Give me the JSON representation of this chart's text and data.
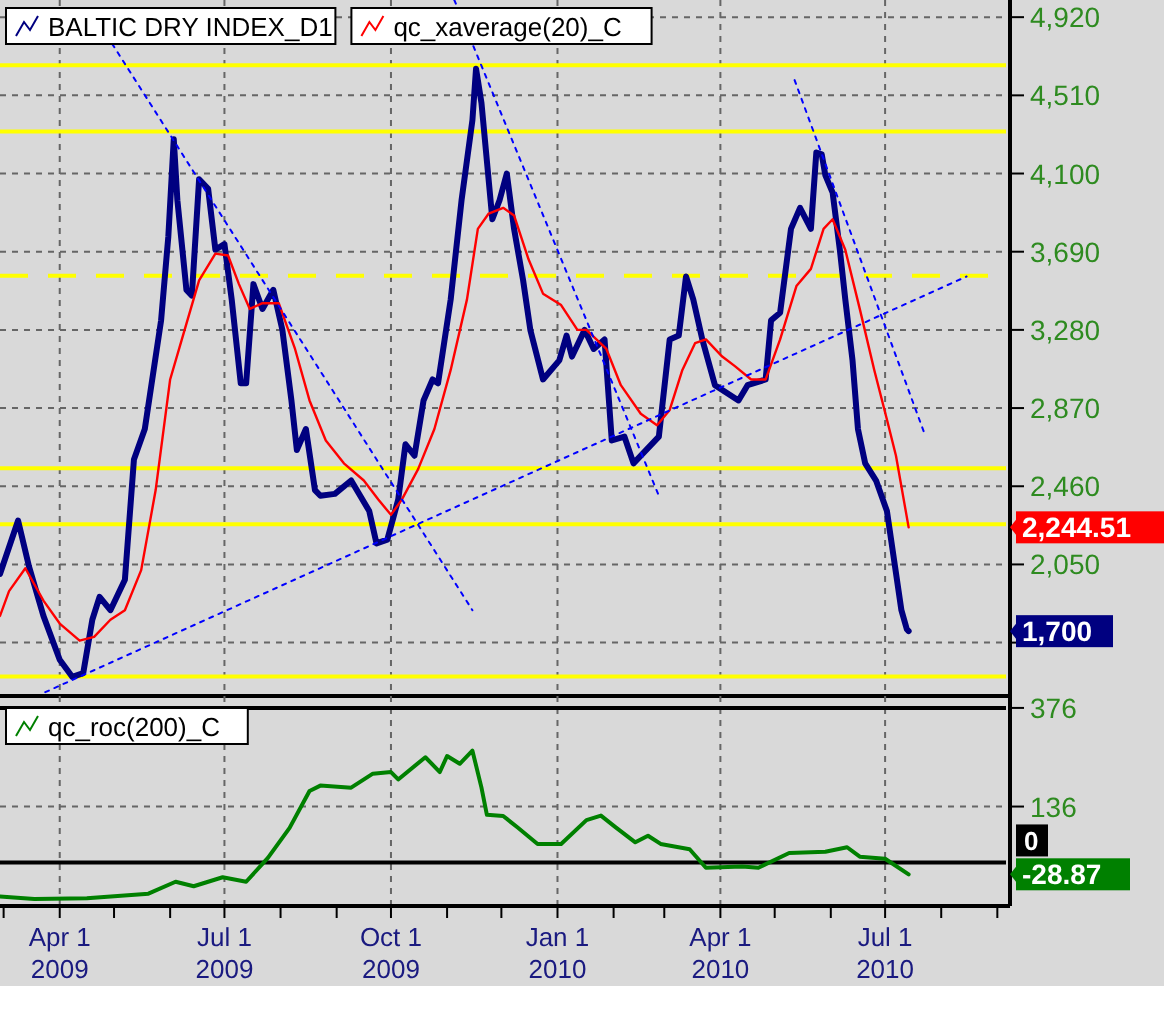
{
  "chart_data": [
    {
      "type": "line",
      "xlim": [
        "2009-02-27",
        "2010-09-08"
      ],
      "ylim": [
        1360,
        5010
      ],
      "yticks": [
        {
          "value": 4920,
          "label": "4,920"
        },
        {
          "value": 4510,
          "label": "4,510"
        },
        {
          "value": 4100,
          "label": "4,100"
        },
        {
          "value": 3690,
          "label": "3,690"
        },
        {
          "value": 3280,
          "label": "3,280"
        },
        {
          "value": 2870,
          "label": "2,870"
        },
        {
          "value": 2460,
          "label": "2,460"
        },
        {
          "value": 2050,
          "label": "2,050"
        },
        {
          "value": 1640,
          "label": null
        }
      ],
      "xticks": [
        "2009-04-01",
        "2009-07-01",
        "2009-10-01",
        "2010-01-01",
        "2010-04-01",
        "2010-07-01"
      ],
      "tick_labels": "y",
      "grid": true,
      "legend": "top left",
      "series": [
        {
          "name": "BALTIC DRY INDEX_D1",
          "color": "#000080",
          "line_style": "solid",
          "x": [
            "2009-02-27",
            "2009-03-09",
            "2009-03-15",
            "2009-03-23",
            "2009-04-01",
            "2009-04-08",
            "2009-04-14",
            "2009-04-19",
            "2009-04-23",
            "2009-04-29",
            "2009-05-07",
            "2009-05-12",
            "2009-05-18",
            "2009-05-27",
            "2009-05-31",
            "2009-06-03",
            "2009-06-05",
            "2009-06-10",
            "2009-06-13",
            "2009-06-17",
            "2009-06-22",
            "2009-06-26",
            "2009-07-01",
            "2009-07-05",
            "2009-07-10",
            "2009-07-13",
            "2009-07-17",
            "2009-07-22",
            "2009-07-28",
            "2009-08-02",
            "2009-08-07",
            "2009-08-10",
            "2009-08-15",
            "2009-08-20",
            "2009-08-23",
            "2009-08-31",
            "2009-09-09",
            "2009-09-19",
            "2009-09-23",
            "2009-09-29",
            "2009-10-05",
            "2009-10-09",
            "2009-10-14",
            "2009-10-19",
            "2009-10-24",
            "2009-10-27",
            "2009-11-03",
            "2009-11-09",
            "2009-11-15",
            "2009-11-17",
            "2009-11-20",
            "2009-11-26",
            "2009-11-30",
            "2009-12-04",
            "2009-12-08",
            "2009-12-13",
            "2009-12-17",
            "2009-12-24",
            "2010-01-02",
            "2010-01-06",
            "2010-01-09",
            "2010-01-16",
            "2010-01-21",
            "2010-01-27",
            "2010-01-31",
            "2010-02-07",
            "2010-02-12",
            "2010-02-26",
            "2010-03-04",
            "2010-03-09",
            "2010-03-13",
            "2010-03-17",
            "2010-03-22",
            "2010-03-29",
            "2010-04-11",
            "2010-04-16",
            "2010-04-26",
            "2010-04-29",
            "2010-05-04",
            "2010-05-10",
            "2010-05-15",
            "2010-05-21",
            "2010-05-24",
            "2010-05-27",
            "2010-05-29",
            "2010-06-02",
            "2010-06-06",
            "2010-06-09",
            "2010-06-13",
            "2010-06-16",
            "2010-06-20",
            "2010-06-26",
            "2010-07-02",
            "2010-07-06",
            "2010-07-10",
            "2010-07-13",
            "2010-07-14"
          ],
          "values": [
            2000,
            2280,
            2040,
            1780,
            1550,
            1460,
            1480,
            1760,
            1880,
            1810,
            1970,
            2600,
            2760,
            3330,
            3770,
            4280,
            3960,
            3490,
            3460,
            4070,
            4020,
            3700,
            3730,
            3440,
            3000,
            3000,
            3520,
            3390,
            3490,
            3280,
            2910,
            2650,
            2760,
            2440,
            2410,
            2420,
            2490,
            2330,
            2160,
            2180,
            2390,
            2680,
            2620,
            2910,
            3020,
            3000,
            3440,
            3960,
            4380,
            4650,
            4470,
            3860,
            3960,
            4100,
            3810,
            3540,
            3280,
            3020,
            3120,
            3250,
            3140,
            3280,
            3180,
            3230,
            2700,
            2720,
            2580,
            2720,
            3230,
            3250,
            3560,
            3440,
            3230,
            2990,
            2910,
            2990,
            3020,
            3330,
            3370,
            3810,
            3920,
            3810,
            4210,
            4200,
            4090,
            4000,
            3700,
            3440,
            3120,
            2760,
            2580,
            2490,
            2330,
            2070,
            1810,
            1710,
            1700
          ]
        },
        {
          "name": "qc_xaverage(20)_C",
          "color": "#ff0000",
          "line_style": "solid",
          "x": [
            "2009-02-27",
            "2009-03-04",
            "2009-03-13",
            "2009-03-23",
            "2009-04-01",
            "2009-04-12",
            "2009-04-20",
            "2009-04-29",
            "2009-05-07",
            "2009-05-16",
            "2009-05-24",
            "2009-06-01",
            "2009-06-09",
            "2009-06-17",
            "2009-06-26",
            "2009-07-03",
            "2009-07-09",
            "2009-07-15",
            "2009-07-22",
            "2009-07-31",
            "2009-08-09",
            "2009-08-17",
            "2009-08-26",
            "2009-09-05",
            "2009-09-16",
            "2009-09-24",
            "2009-10-01",
            "2009-10-07",
            "2009-10-16",
            "2009-10-25",
            "2009-11-03",
            "2009-11-12",
            "2009-11-18",
            "2009-11-24",
            "2009-12-02",
            "2009-12-08",
            "2009-12-16",
            "2009-12-24",
            "2010-01-03",
            "2010-01-12",
            "2010-01-17",
            "2010-01-28",
            "2010-02-05",
            "2010-02-16",
            "2010-02-25",
            "2010-03-04",
            "2010-03-11",
            "2010-03-18",
            "2010-03-24",
            "2010-04-02",
            "2010-04-09",
            "2010-04-18",
            "2010-04-26",
            "2010-05-04",
            "2010-05-13",
            "2010-05-21",
            "2010-05-28",
            "2010-06-02",
            "2010-06-09",
            "2010-06-17",
            "2010-06-25",
            "2010-07-02",
            "2010-07-07",
            "2010-07-14"
          ],
          "values": [
            1780,
            1910,
            2030,
            1860,
            1740,
            1650,
            1670,
            1760,
            1810,
            2020,
            2440,
            3020,
            3280,
            3540,
            3680,
            3670,
            3520,
            3390,
            3420,
            3420,
            3180,
            2910,
            2700,
            2580,
            2490,
            2390,
            2310,
            2390,
            2550,
            2760,
            3070,
            3440,
            3810,
            3890,
            3920,
            3880,
            3650,
            3470,
            3410,
            3280,
            3280,
            3180,
            2990,
            2840,
            2780,
            2860,
            3070,
            3210,
            3230,
            3140,
            3090,
            3020,
            3020,
            3230,
            3510,
            3600,
            3810,
            3860,
            3700,
            3390,
            3070,
            2810,
            2620,
            2244.51
          ]
        },
        {
          "type": "line",
          "color": "#0000ff",
          "line_style": "dotted",
          "x": [
            "2009-04-30",
            "2009-11-15"
          ],
          "values": [
            4780,
            1810
          ]
        },
        {
          "type": "line",
          "color": "#0000ff",
          "line_style": "dotted",
          "x": [
            "2009-03-24",
            "2010-08-15"
          ],
          "values": [
            1380,
            3560
          ]
        },
        {
          "type": "line",
          "color": "#0000ff",
          "line_style": "dotted",
          "x": [
            "2009-11-05",
            "2010-02-26"
          ],
          "values": [
            5010,
            2410
          ]
        },
        {
          "type": "line",
          "color": "#0000ff",
          "line_style": "dotted",
          "x": [
            "2010-05-12",
            "2010-07-23"
          ],
          "values": [
            4590,
            2730
          ]
        }
      ],
      "ref_lines": [
        {
          "axis": "y",
          "value": 4668,
          "color": "#ffff00",
          "line_style": "solid"
        },
        {
          "axis": "y",
          "value": 4321,
          "color": "#ffff00",
          "line_style": "solid"
        },
        {
          "axis": "y",
          "value": 3564,
          "color": "#ffff00",
          "line_style": "dashed"
        },
        {
          "axis": "y",
          "value": 2555,
          "color": "#ffff00",
          "line_style": "solid"
        },
        {
          "axis": "y",
          "value": 2261,
          "color": "#ffff00",
          "line_style": "solid"
        },
        {
          "axis": "y",
          "value": 1462,
          "color": "#ffff00",
          "line_style": "solid"
        }
      ],
      "annotations": [
        "1,700",
        "2,244.51"
      ]
    },
    {
      "type": "line",
      "xlim": [
        "2009-02-27",
        "2010-09-08"
      ],
      "ylim": [
        -106,
        405
      ],
      "yticks": [
        376,
        136
      ],
      "xticks": [
        {
          "value": "2009-03-01",
          "label": null
        },
        {
          "value": "2009-04-01",
          "label": "Apr 1\n2009"
        },
        {
          "value": "2009-05-01",
          "label": null
        },
        {
          "value": "2009-06-01",
          "label": null
        },
        {
          "value": "2009-07-01",
          "label": "Jul 1\n2009"
        },
        {
          "value": "2009-08-01",
          "label": null
        },
        {
          "value": "2009-09-01",
          "label": null
        },
        {
          "value": "2009-10-01",
          "label": "Oct 1\n2009"
        },
        {
          "value": "2009-11-01",
          "label": null
        },
        {
          "value": "2009-12-01",
          "label": null
        },
        {
          "value": "2010-01-01",
          "label": "Jan 1\n2010"
        },
        {
          "value": "2010-02-01",
          "label": null
        },
        {
          "value": "2010-03-01",
          "label": null
        },
        {
          "value": "2010-04-01",
          "label": "Apr 1\n2010"
        },
        {
          "value": "2010-05-01",
          "label": null
        },
        {
          "value": "2010-06-01",
          "label": null
        },
        {
          "value": "2010-07-01",
          "label": "Jul 1\n2010"
        },
        {
          "value": "2010-08-01",
          "label": null
        },
        {
          "value": "2010-09-01",
          "label": null
        }
      ],
      "grid": true,
      "legend": "top left",
      "series": [
        {
          "name": "qc_roc(200)_C",
          "color": "#008000",
          "line_style": "solid",
          "x": [
            "2009-02-27",
            "2009-03-18",
            "2009-04-16",
            "2009-05-20",
            "2009-06-04",
            "2009-06-14",
            "2009-06-30",
            "2009-07-13",
            "2009-07-25",
            "2009-08-06",
            "2009-08-17",
            "2009-08-23",
            "2009-09-09",
            "2009-09-21",
            "2009-10-01",
            "2009-10-05",
            "2009-10-20",
            "2009-10-28",
            "2009-11-01",
            "2009-11-08",
            "2009-11-15",
            "2009-11-20",
            "2009-11-23",
            "2009-12-02",
            "2009-12-10",
            "2009-12-21",
            "2010-01-03",
            "2010-01-17",
            "2010-01-25",
            "2010-02-02",
            "2010-02-13",
            "2010-02-20",
            "2010-02-27",
            "2010-03-15",
            "2010-03-24",
            "2010-04-13",
            "2010-04-22",
            "2010-05-09",
            "2010-05-29",
            "2010-06-10",
            "2010-06-17",
            "2010-07-01",
            "2010-07-14"
          ],
          "values": [
            -83,
            -89,
            -87,
            -76,
            -47,
            -58,
            -36,
            -47,
            11,
            84,
            174,
            187,
            182,
            216,
            220,
            202,
            256,
            220,
            259,
            240,
            272,
            182,
            116,
            113,
            85,
            45,
            45,
            103,
            114,
            86,
            49,
            65,
            45,
            32,
            -13,
            -10,
            -13,
            23,
            26,
            37,
            14,
            9,
            -28.87
          ]
        }
      ],
      "ref_lines": [
        {
          "axis": "y",
          "value": 376,
          "color": "#000000",
          "line_style": "solid"
        },
        {
          "axis": "y",
          "value": 0,
          "label": "0",
          "color": "#000000",
          "line_style": "solid"
        }
      ],
      "annotations": [
        "-28.87"
      ]
    }
  ]
}
